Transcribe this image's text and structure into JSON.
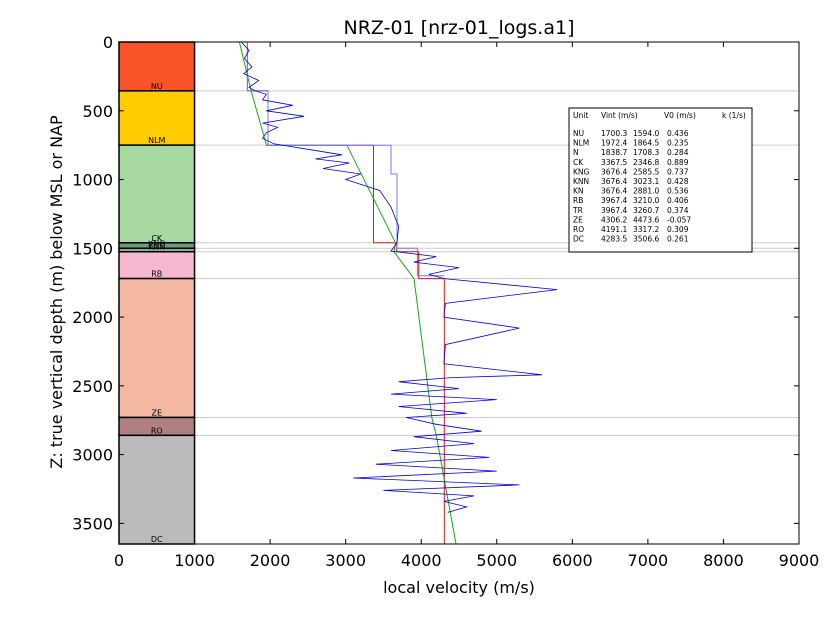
{
  "chart_data": {
    "type": "line",
    "title": "NRZ-01 [nrz-01_logs.a1]",
    "xlabel": "local velocity (m/s)",
    "ylabel": "Z: true vertical depth (m) below MSL or NAP",
    "xlim": [
      0,
      9000
    ],
    "ylim": [
      3650,
      0
    ],
    "y_inverted": true,
    "x_ticks": [
      0,
      1000,
      2000,
      3000,
      4000,
      5000,
      6000,
      7000,
      8000,
      9000
    ],
    "y_ticks": [
      0,
      500,
      1000,
      1500,
      2000,
      2500,
      3000,
      3500
    ],
    "grid": false,
    "units": [
      {
        "name": "NU",
        "top": 0,
        "base": 355,
        "color": "#fa5528"
      },
      {
        "name": "NLM",
        "top": 355,
        "base": 750,
        "color": "#ffcc00"
      },
      {
        "name": "CK",
        "top": 750,
        "base": 1460,
        "color": "#a6d8a0"
      },
      {
        "name": "KNG",
        "top": 1460,
        "base": 1500,
        "color": "#6a9a80"
      },
      {
        "name": "KNN",
        "top": 1500,
        "base": 1525,
        "color": "#8cb898"
      },
      {
        "name": "RB",
        "top": 1525,
        "base": 1720,
        "color": "#f5b8d0"
      },
      {
        "name": "ZE",
        "top": 1720,
        "base": 2730,
        "color": "#f4b8a2"
      },
      {
        "name": "RO",
        "top": 2730,
        "base": 2860,
        "color": "#b08080"
      },
      {
        "name": "DC",
        "top": 2860,
        "base": 3650,
        "color": "#bbbbbb"
      }
    ],
    "series": [
      {
        "line": "interval velocity",
        "color": "#ee1111",
        "points": [
          [
            1700,
            0
          ],
          [
            1700,
            355
          ],
          [
            1972,
            355
          ],
          [
            1972,
            750
          ],
          [
            3368,
            750
          ],
          [
            3368,
            1460
          ],
          [
            3676,
            1460
          ],
          [
            3676,
            1525
          ],
          [
            3967,
            1525
          ],
          [
            3967,
            1720
          ],
          [
            4306,
            1720
          ],
          [
            4306,
            3650
          ]
        ]
      },
      {
        "line": "V0 + k z model",
        "color": "#11aa11",
        "points": [
          [
            1594,
            0
          ],
          [
            1749,
            355
          ],
          [
            1952,
            750
          ],
          [
            3016,
            750
          ],
          [
            3659,
            1460
          ],
          [
            3640,
            1525
          ],
          [
            3905,
            1720
          ],
          [
            4140,
            2730
          ],
          [
            4200,
            2860
          ],
          [
            4460,
            3650
          ]
        ]
      },
      {
        "line": "thin blue step",
        "color": "#7777ee",
        "points": [
          [
            1700,
            0
          ],
          [
            1700,
            355
          ],
          [
            1972,
            355
          ],
          [
            1972,
            750
          ],
          [
            3600,
            750
          ],
          [
            3600,
            960
          ],
          [
            3680,
            960
          ],
          [
            3680,
            1500
          ],
          [
            3950,
            1500
          ],
          [
            3950,
            1700
          ],
          [
            4306,
            1700
          ]
        ]
      },
      {
        "line": "sonic log",
        "color": "#0000dd",
        "points": [
          [
            1620,
            0
          ],
          [
            1720,
            60
          ],
          [
            1660,
            120
          ],
          [
            1760,
            180
          ],
          [
            1650,
            230
          ],
          [
            1850,
            280
          ],
          [
            1720,
            330
          ],
          [
            1800,
            355
          ],
          [
            1950,
            380
          ],
          [
            1900,
            420
          ],
          [
            2300,
            460
          ],
          [
            1950,
            500
          ],
          [
            2450,
            540
          ],
          [
            1900,
            590
          ],
          [
            2100,
            620
          ],
          [
            1950,
            660
          ],
          [
            1900,
            700
          ],
          [
            2050,
            740
          ],
          [
            2500,
            780
          ],
          [
            2950,
            820
          ],
          [
            2600,
            850
          ],
          [
            3050,
            880
          ],
          [
            2700,
            920
          ],
          [
            3200,
            960
          ],
          [
            3000,
            1000
          ],
          [
            3450,
            1080
          ],
          [
            3600,
            1200
          ],
          [
            3700,
            1340
          ],
          [
            3680,
            1460
          ],
          [
            3600,
            1520
          ],
          [
            4200,
            1560
          ],
          [
            3900,
            1600
          ],
          [
            4500,
            1640
          ],
          [
            4100,
            1690
          ],
          [
            4300,
            1720
          ],
          [
            5800,
            1800
          ],
          [
            4320,
            1900
          ],
          [
            4300,
            2000
          ],
          [
            5300,
            2080
          ],
          [
            4320,
            2200
          ],
          [
            4300,
            2340
          ],
          [
            5600,
            2420
          ],
          [
            4400,
            2440
          ],
          [
            3700,
            2470
          ],
          [
            4500,
            2520
          ],
          [
            3600,
            2560
          ],
          [
            5000,
            2600
          ],
          [
            3700,
            2650
          ],
          [
            4600,
            2700
          ],
          [
            3800,
            2730
          ],
          [
            4200,
            2780
          ],
          [
            4800,
            2830
          ],
          [
            3900,
            2870
          ],
          [
            4700,
            2920
          ],
          [
            3600,
            2970
          ],
          [
            4900,
            3020
          ],
          [
            3400,
            3070
          ],
          [
            5000,
            3120
          ],
          [
            3100,
            3170
          ],
          [
            5300,
            3220
          ],
          [
            3500,
            3260
          ],
          [
            4700,
            3300
          ],
          [
            4300,
            3340
          ],
          [
            4600,
            3380
          ],
          [
            4350,
            3420
          ]
        ]
      }
    ],
    "table": {
      "headers": [
        "Unit",
        "Vint (m/s)",
        "V0 (m/s)",
        "k (1/s)"
      ],
      "rows": [
        [
          "NU",
          "1700.3",
          "1594.0",
          "0.436"
        ],
        [
          "NLM",
          "1972.4",
          "1864.5",
          "0.235"
        ],
        [
          "N",
          "1838.7",
          "1708.3",
          "0.284"
        ],
        [
          "CK",
          "3367.5",
          "2346.8",
          "0.889"
        ],
        [
          "KNG",
          "3676.4",
          "2585.5",
          "0.737"
        ],
        [
          "KNN",
          "3676.4",
          "3023.1",
          "0.428"
        ],
        [
          "KN",
          "3676.4",
          "2881.0",
          "0.536"
        ],
        [
          "RB",
          "3967.4",
          "3210.0",
          "0.406"
        ],
        [
          "TR",
          "3967.4",
          "3260.7",
          "0.374"
        ],
        [
          "ZE",
          "4306.2",
          "4473.6",
          "-0.057"
        ],
        [
          "RO",
          "4191.1",
          "3317.2",
          "0.309"
        ],
        [
          "DC",
          "4283.5",
          "3506.6",
          "0.261"
        ]
      ]
    }
  },
  "colors": {
    "axis": "#000000",
    "boundary": "#cccccc"
  }
}
